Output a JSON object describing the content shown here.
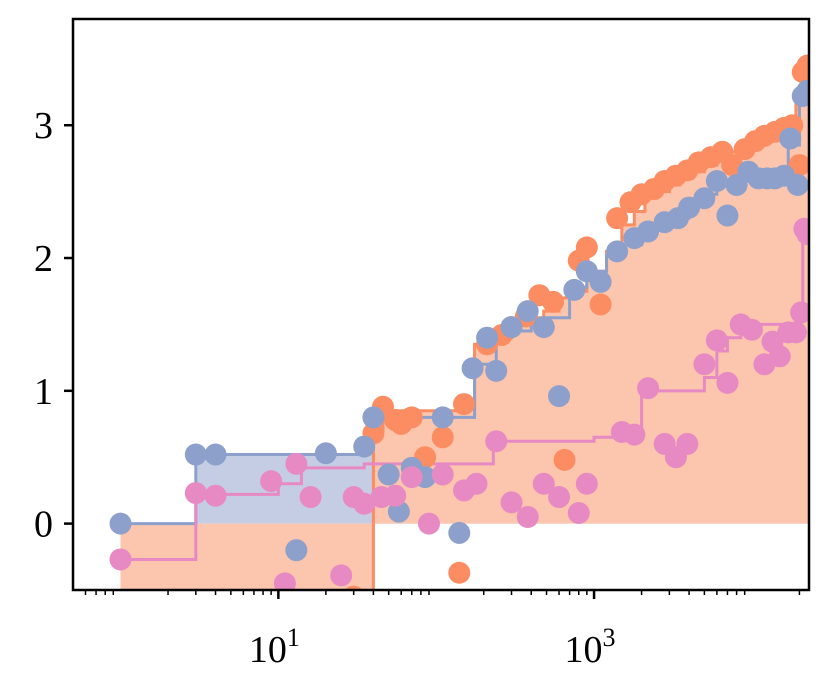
{
  "chart_data": {
    "type": "scatter",
    "x_scale": "log",
    "xlim": [
      0.5,
      23000
    ],
    "ylim": [
      -0.5,
      3.8
    ],
    "x_ticks": [
      {
        "value": 10,
        "base": "10",
        "exp": "1"
      },
      {
        "value": 1000,
        "base": "10",
        "exp": "3"
      }
    ],
    "y_ticks": [
      {
        "value": 0,
        "label": "0"
      },
      {
        "value": 1,
        "label": "1"
      },
      {
        "value": 2,
        "label": "2"
      },
      {
        "value": 3,
        "label": "3"
      }
    ],
    "grid": false,
    "series": [
      {
        "color": "#fc8d62",
        "fill": "#fcc5ad",
        "step_x": [
          1,
          40,
          40,
          41,
          46,
          55,
          60,
          70,
          85,
          110,
          150,
          175,
          200,
          250,
          300,
          400,
          480,
          600,
          800,
          900,
          1200,
          1500,
          1800,
          2100,
          2500,
          3000,
          3500,
          4200,
          5000,
          6000,
          7000,
          8500,
          10000,
          11500,
          13000,
          15000,
          17000,
          19000,
          21000,
          23000
        ],
        "step_y": [
          -0.7,
          -0.7,
          0.65,
          0.7,
          0.85,
          0.85,
          0.85,
          0.85,
          0.85,
          0.85,
          0.9,
          1.35,
          1.4,
          1.45,
          1.5,
          1.55,
          1.6,
          1.7,
          1.75,
          1.9,
          2.05,
          2.25,
          2.35,
          2.45,
          2.5,
          2.55,
          2.6,
          2.65,
          2.7,
          2.75,
          2.8,
          2.85,
          2.9,
          2.92,
          2.95,
          2.98,
          3.0,
          3.25,
          3.4,
          3.45
        ],
        "points": [
          [
            1,
            -0.7
          ],
          [
            40,
            0.68
          ],
          [
            46,
            0.88
          ],
          [
            55,
            0.78
          ],
          [
            60,
            0.75
          ],
          [
            70,
            0.8
          ],
          [
            85,
            0.5
          ],
          [
            110,
            0.65
          ],
          [
            140,
            -0.37
          ],
          [
            150,
            0.9
          ],
          [
            210,
            1.35
          ],
          [
            260,
            1.42
          ],
          [
            300,
            1.48
          ],
          [
            370,
            1.56
          ],
          [
            450,
            1.72
          ],
          [
            550,
            1.67
          ],
          [
            650,
            0.48
          ],
          [
            800,
            1.98
          ],
          [
            900,
            2.08
          ],
          [
            1100,
            1.65
          ],
          [
            1400,
            2.3
          ],
          [
            1700,
            2.42
          ],
          [
            2000,
            2.48
          ],
          [
            2400,
            2.52
          ],
          [
            2800,
            2.58
          ],
          [
            3300,
            2.62
          ],
          [
            3900,
            2.66
          ],
          [
            4600,
            2.72
          ],
          [
            5500,
            2.76
          ],
          [
            6500,
            2.8
          ],
          [
            7500,
            2.7
          ],
          [
            9000,
            2.82
          ],
          [
            10500,
            2.88
          ],
          [
            12000,
            2.92
          ],
          [
            14000,
            2.95
          ],
          [
            16000,
            2.98
          ],
          [
            18000,
            3.0
          ],
          [
            20000,
            2.7
          ],
          [
            21000,
            3.4
          ],
          [
            22500,
            3.45
          ],
          [
            30,
            -0.55
          ]
        ]
      },
      {
        "color": "#8da0cb",
        "fill": "#c5cde5",
        "step_x": [
          1,
          3,
          3,
          3.5,
          4,
          20,
          35,
          40,
          45,
          55,
          70,
          90,
          130,
          160,
          175,
          210,
          240,
          300,
          400,
          500,
          700,
          900,
          1200,
          1500,
          2000,
          2500,
          3000,
          4000,
          5000,
          6000,
          8000,
          10000,
          12000,
          15000,
          17000,
          20000,
          23000
        ],
        "step_y": [
          0.0,
          0.0,
          0.52,
          0.52,
          0.52,
          0.52,
          0.58,
          0.8,
          0.8,
          0.8,
          0.8,
          0.8,
          0.8,
          0.8,
          1.2,
          1.2,
          1.4,
          1.45,
          1.5,
          1.55,
          1.78,
          1.9,
          2.02,
          2.1,
          2.2,
          2.25,
          2.3,
          2.4,
          2.48,
          2.55,
          2.6,
          2.62,
          2.62,
          2.62,
          2.85,
          3.2,
          3.3
        ],
        "points": [
          [
            1,
            0.0
          ],
          [
            3,
            0.52
          ],
          [
            4,
            0.52
          ],
          [
            13,
            -0.2
          ],
          [
            20,
            0.53
          ],
          [
            35,
            0.58
          ],
          [
            40,
            0.8
          ],
          [
            50,
            0.37
          ],
          [
            58,
            0.09
          ],
          [
            70,
            0.42
          ],
          [
            85,
            0.35
          ],
          [
            110,
            0.8
          ],
          [
            140,
            -0.07
          ],
          [
            170,
            1.17
          ],
          [
            210,
            1.4
          ],
          [
            240,
            1.15
          ],
          [
            300,
            1.48
          ],
          [
            380,
            1.6
          ],
          [
            480,
            1.48
          ],
          [
            600,
            0.96
          ],
          [
            750,
            1.76
          ],
          [
            900,
            1.9
          ],
          [
            1100,
            1.82
          ],
          [
            1400,
            2.05
          ],
          [
            1800,
            2.15
          ],
          [
            2200,
            2.2
          ],
          [
            2800,
            2.27
          ],
          [
            3400,
            2.3
          ],
          [
            4000,
            2.38
          ],
          [
            5000,
            2.45
          ],
          [
            6000,
            2.58
          ],
          [
            7000,
            2.32
          ],
          [
            8000,
            2.55
          ],
          [
            9500,
            2.65
          ],
          [
            11000,
            2.6
          ],
          [
            12500,
            2.6
          ],
          [
            14000,
            2.6
          ],
          [
            16000,
            2.62
          ],
          [
            17500,
            2.9
          ],
          [
            19500,
            2.55
          ],
          [
            21000,
            3.22
          ],
          [
            22500,
            3.26
          ]
        ]
      },
      {
        "color": "#e78ac3",
        "step_x": [
          1,
          3,
          3,
          4,
          10,
          14,
          18,
          35,
          45,
          60,
          80,
          120,
          150,
          200,
          230,
          300,
          600,
          1000,
          1500,
          2000,
          2500,
          3200,
          4000,
          5000,
          6000,
          7000,
          8500,
          10000,
          12000,
          15000,
          17000,
          19000,
          21000,
          23000
        ],
        "step_y": [
          -0.27,
          -0.27,
          0.22,
          0.22,
          0.3,
          0.42,
          0.42,
          0.45,
          0.45,
          0.45,
          0.45,
          0.45,
          0.45,
          0.45,
          0.62,
          0.62,
          0.62,
          0.65,
          0.68,
          1.0,
          1.0,
          1.0,
          1.0,
          1.1,
          1.3,
          1.4,
          1.45,
          1.5,
          1.5,
          1.5,
          1.5,
          1.6,
          2.2,
          2.2
        ],
        "points": [
          [
            1,
            -0.27
          ],
          [
            3,
            0.23
          ],
          [
            4,
            0.21
          ],
          [
            9,
            0.32
          ],
          [
            11,
            -0.45
          ],
          [
            13,
            0.45
          ],
          [
            16,
            0.2
          ],
          [
            25,
            -0.39
          ],
          [
            30,
            0.2
          ],
          [
            35,
            0.15
          ],
          [
            45,
            0.2
          ],
          [
            55,
            0.21
          ],
          [
            70,
            0.35
          ],
          [
            90,
            0.0
          ],
          [
            110,
            0.37
          ],
          [
            150,
            0.25
          ],
          [
            180,
            0.3
          ],
          [
            240,
            0.62
          ],
          [
            300,
            0.16
          ],
          [
            380,
            0.05
          ],
          [
            480,
            0.3
          ],
          [
            600,
            0.2
          ],
          [
            800,
            0.08
          ],
          [
            900,
            0.3
          ],
          [
            1500,
            0.69
          ],
          [
            1800,
            0.67
          ],
          [
            2200,
            1.02
          ],
          [
            2800,
            0.6
          ],
          [
            3300,
            0.5
          ],
          [
            3900,
            0.6
          ],
          [
            5000,
            1.2
          ],
          [
            6000,
            1.38
          ],
          [
            7000,
            1.06
          ],
          [
            8500,
            1.5
          ],
          [
            10000,
            1.46
          ],
          [
            12000,
            1.2
          ],
          [
            13500,
            1.37
          ],
          [
            15000,
            1.26
          ],
          [
            17000,
            1.44
          ],
          [
            19000,
            1.44
          ],
          [
            20500,
            1.59
          ],
          [
            21500,
            2.22
          ],
          [
            22500,
            2.18
          ]
        ]
      }
    ]
  }
}
